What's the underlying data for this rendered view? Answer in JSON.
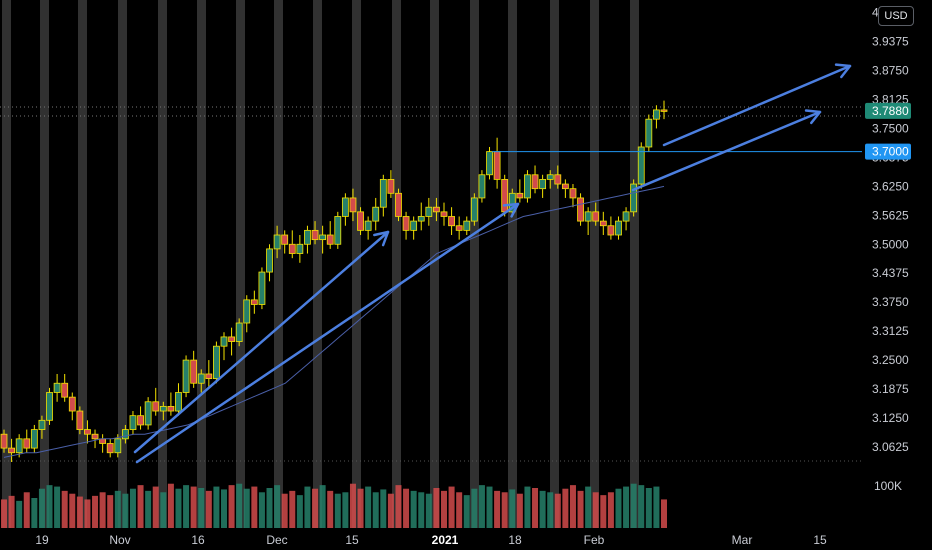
{
  "currency_button": "USD",
  "volume_label": "100K",
  "colors": {
    "background": "#000000",
    "up_candle": "#26806a",
    "down_candle": "#d24b4b",
    "wick_highlight": "#f5e400",
    "session_band": "#3a3a3a",
    "moving_average": "#4a5fa8",
    "annotation_arrow": "#4c7fe0",
    "price_label_last": "#1f8a76",
    "price_label_level": "#2196f3"
  },
  "chart_data": {
    "type": "candlestick",
    "y_axis": {
      "ticks": [
        "4.0000",
        "3.9375",
        "3.8750",
        "3.8125",
        "3.7500",
        "3.6875",
        "3.6250",
        "3.5625",
        "3.5000",
        "3.4375",
        "3.3750",
        "3.3125",
        "3.2500",
        "3.1875",
        "3.1250",
        "3.0625"
      ],
      "range": [
        3.03,
        4.01
      ]
    },
    "x_axis": {
      "ticks": [
        "19",
        "Nov",
        "16",
        "Dec",
        "15",
        "2021",
        "18",
        "Feb",
        "Mar",
        "15"
      ],
      "bold_ticks": [
        "2021"
      ]
    },
    "price_labels": {
      "last_price": "3.7880",
      "level_price": "3.7000"
    },
    "horizontal_level": 3.7,
    "series": [
      {
        "name": "price",
        "ohlc": [
          [
            3.09,
            3.1,
            3.05,
            3.06
          ],
          [
            3.06,
            3.08,
            3.03,
            3.05
          ],
          [
            3.05,
            3.09,
            3.04,
            3.08
          ],
          [
            3.08,
            3.1,
            3.05,
            3.06
          ],
          [
            3.06,
            3.11,
            3.05,
            3.1
          ],
          [
            3.1,
            3.13,
            3.08,
            3.12
          ],
          [
            3.12,
            3.19,
            3.11,
            3.18
          ],
          [
            3.18,
            3.22,
            3.16,
            3.2
          ],
          [
            3.2,
            3.22,
            3.16,
            3.17
          ],
          [
            3.17,
            3.18,
            3.12,
            3.14
          ],
          [
            3.14,
            3.15,
            3.09,
            3.1
          ],
          [
            3.1,
            3.12,
            3.07,
            3.09
          ],
          [
            3.09,
            3.1,
            3.06,
            3.08
          ],
          [
            3.08,
            3.09,
            3.05,
            3.07
          ],
          [
            3.07,
            3.08,
            3.04,
            3.05
          ],
          [
            3.05,
            3.09,
            3.04,
            3.08
          ],
          [
            3.08,
            3.11,
            3.07,
            3.1
          ],
          [
            3.1,
            3.14,
            3.09,
            3.13
          ],
          [
            3.13,
            3.15,
            3.1,
            3.11
          ],
          [
            3.11,
            3.17,
            3.1,
            3.16
          ],
          [
            3.16,
            3.19,
            3.13,
            3.14
          ],
          [
            3.14,
            3.16,
            3.12,
            3.15
          ],
          [
            3.15,
            3.18,
            3.13,
            3.14
          ],
          [
            3.14,
            3.2,
            3.13,
            3.18
          ],
          [
            3.18,
            3.26,
            3.17,
            3.25
          ],
          [
            3.25,
            3.27,
            3.19,
            3.2
          ],
          [
            3.2,
            3.23,
            3.18,
            3.22
          ],
          [
            3.22,
            3.25,
            3.19,
            3.21
          ],
          [
            3.21,
            3.29,
            3.2,
            3.28
          ],
          [
            3.28,
            3.31,
            3.25,
            3.3
          ],
          [
            3.3,
            3.32,
            3.26,
            3.29
          ],
          [
            3.29,
            3.34,
            3.28,
            3.33
          ],
          [
            3.33,
            3.39,
            3.31,
            3.38
          ],
          [
            3.38,
            3.4,
            3.35,
            3.37
          ],
          [
            3.37,
            3.45,
            3.36,
            3.44
          ],
          [
            3.44,
            3.5,
            3.42,
            3.49
          ],
          [
            3.49,
            3.54,
            3.47,
            3.52
          ],
          [
            3.52,
            3.53,
            3.48,
            3.5
          ],
          [
            3.5,
            3.53,
            3.47,
            3.48
          ],
          [
            3.48,
            3.52,
            3.46,
            3.5
          ],
          [
            3.5,
            3.54,
            3.48,
            3.53
          ],
          [
            3.53,
            3.55,
            3.5,
            3.51
          ],
          [
            3.51,
            3.54,
            3.48,
            3.52
          ],
          [
            3.52,
            3.55,
            3.49,
            3.5
          ],
          [
            3.5,
            3.57,
            3.49,
            3.56
          ],
          [
            3.56,
            3.61,
            3.54,
            3.6
          ],
          [
            3.6,
            3.62,
            3.55,
            3.57
          ],
          [
            3.57,
            3.58,
            3.52,
            3.53
          ],
          [
            3.53,
            3.56,
            3.51,
            3.55
          ],
          [
            3.55,
            3.6,
            3.53,
            3.58
          ],
          [
            3.58,
            3.65,
            3.56,
            3.64
          ],
          [
            3.64,
            3.66,
            3.6,
            3.61
          ],
          [
            3.61,
            3.62,
            3.55,
            3.56
          ],
          [
            3.56,
            3.57,
            3.51,
            3.53
          ],
          [
            3.53,
            3.56,
            3.51,
            3.55
          ],
          [
            3.55,
            3.59,
            3.53,
            3.56
          ],
          [
            3.56,
            3.6,
            3.54,
            3.58
          ],
          [
            3.58,
            3.6,
            3.55,
            3.57
          ],
          [
            3.57,
            3.59,
            3.54,
            3.56
          ],
          [
            3.56,
            3.58,
            3.52,
            3.54
          ],
          [
            3.54,
            3.56,
            3.51,
            3.53
          ],
          [
            3.53,
            3.56,
            3.52,
            3.55
          ],
          [
            3.55,
            3.61,
            3.54,
            3.6
          ],
          [
            3.6,
            3.66,
            3.59,
            3.65
          ],
          [
            3.65,
            3.71,
            3.64,
            3.7
          ],
          [
            3.7,
            3.73,
            3.62,
            3.64
          ],
          [
            3.64,
            3.65,
            3.56,
            3.57
          ],
          [
            3.57,
            3.62,
            3.56,
            3.61
          ],
          [
            3.61,
            3.64,
            3.59,
            3.6
          ],
          [
            3.6,
            3.66,
            3.59,
            3.65
          ],
          [
            3.65,
            3.67,
            3.61,
            3.62
          ],
          [
            3.62,
            3.65,
            3.6,
            3.64
          ],
          [
            3.64,
            3.66,
            3.62,
            3.65
          ],
          [
            3.65,
            3.67,
            3.62,
            3.63
          ],
          [
            3.63,
            3.64,
            3.6,
            3.62
          ],
          [
            3.62,
            3.63,
            3.58,
            3.6
          ],
          [
            3.6,
            3.61,
            3.54,
            3.55
          ],
          [
            3.55,
            3.58,
            3.52,
            3.57
          ],
          [
            3.57,
            3.59,
            3.54,
            3.55
          ],
          [
            3.55,
            3.57,
            3.52,
            3.54
          ],
          [
            3.54,
            3.56,
            3.51,
            3.52
          ],
          [
            3.52,
            3.56,
            3.51,
            3.55
          ],
          [
            3.55,
            3.58,
            3.53,
            3.57
          ],
          [
            3.57,
            3.64,
            3.56,
            3.63
          ],
          [
            3.63,
            3.72,
            3.62,
            3.71
          ],
          [
            3.71,
            3.78,
            3.7,
            3.77
          ],
          [
            3.77,
            3.8,
            3.75,
            3.79
          ],
          [
            3.79,
            3.81,
            3.77,
            3.788
          ]
        ],
        "volume": [
          40,
          45,
          38,
          50,
          42,
          55,
          60,
          58,
          52,
          48,
          44,
          40,
          45,
          50,
          46,
          52,
          48,
          55,
          60,
          52,
          58,
          50,
          62,
          55,
          60,
          58,
          56,
          52,
          58,
          54,
          60,
          62,
          55,
          58,
          50,
          56,
          60,
          48,
          52,
          46,
          58,
          55,
          60,
          52,
          48,
          50,
          62,
          55,
          58,
          50,
          54,
          48,
          60,
          55,
          52,
          50,
          48,
          56,
          52,
          58,
          50,
          46,
          55,
          60,
          58,
          52,
          50,
          54,
          48,
          58,
          56,
          52,
          50,
          48,
          55,
          60,
          52,
          58,
          50,
          46,
          50,
          55,
          58,
          62,
          60,
          56,
          58,
          40
        ],
        "volume_axis_ticks": [
          "100K"
        ]
      },
      {
        "name": "moving-average",
        "values": [
          3.04,
          3.045,
          3.05,
          3.05,
          3.055,
          3.06,
          3.065,
          3.07,
          3.075,
          3.08,
          3.08,
          3.085,
          3.09,
          3.09,
          3.095,
          3.1,
          3.105,
          3.11,
          3.12,
          3.13,
          3.14,
          3.15,
          3.16,
          3.17,
          3.18,
          3.19,
          3.2,
          3.22,
          3.24,
          3.26,
          3.28,
          3.3,
          3.32,
          3.34,
          3.36,
          3.38,
          3.4,
          3.42,
          3.44,
          3.46,
          3.48,
          3.49,
          3.5,
          3.51,
          3.52,
          3.53,
          3.54,
          3.55,
          3.56,
          3.565,
          3.57,
          3.575,
          3.58,
          3.585,
          3.59,
          3.595,
          3.6,
          3.605,
          3.61,
          3.615,
          3.62,
          3.625
        ]
      }
    ]
  }
}
